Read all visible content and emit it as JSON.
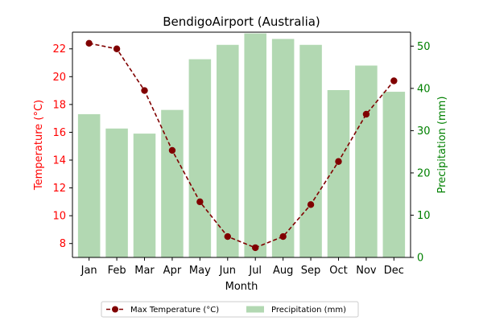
{
  "chart_data": {
    "type": "bar+line",
    "title": "BendigoAirport (Australia)",
    "xlabel": "Month",
    "categories": [
      "Jan",
      "Feb",
      "Mar",
      "Apr",
      "May",
      "Jun",
      "Jul",
      "Aug",
      "Sep",
      "Oct",
      "Nov",
      "Dec"
    ],
    "y_left": {
      "label": "Temperature (°C)",
      "color": "#ff0000",
      "ylim": [
        7.0,
        23.2
      ],
      "ticks": [
        8,
        10,
        12,
        14,
        16,
        18,
        20,
        22
      ]
    },
    "y_right": {
      "label": "Precipitation (mm)",
      "color": "#008000",
      "ylim": [
        0,
        53.3
      ],
      "ticks": [
        0,
        10,
        20,
        30,
        40,
        50
      ]
    },
    "series": [
      {
        "name": "Precipitation (mm)",
        "type": "bar",
        "axis": "right",
        "color": "#b2d8b2",
        "values": [
          33.9,
          30.5,
          29.3,
          34.9,
          46.9,
          50.3,
          53.0,
          51.7,
          50.3,
          39.6,
          45.4,
          39.2
        ]
      },
      {
        "name": "Max Temperature (°C)",
        "type": "line",
        "axis": "left",
        "color": "#800000",
        "linestyle": "dashed",
        "marker": "circle",
        "values": [
          22.4,
          22.0,
          19.0,
          14.7,
          11.0,
          8.5,
          7.7,
          8.5,
          10.8,
          13.9,
          17.3,
          19.7
        ]
      }
    ],
    "legend": {
      "placement": "bottom-center",
      "columns": 2
    },
    "grid": false
  }
}
